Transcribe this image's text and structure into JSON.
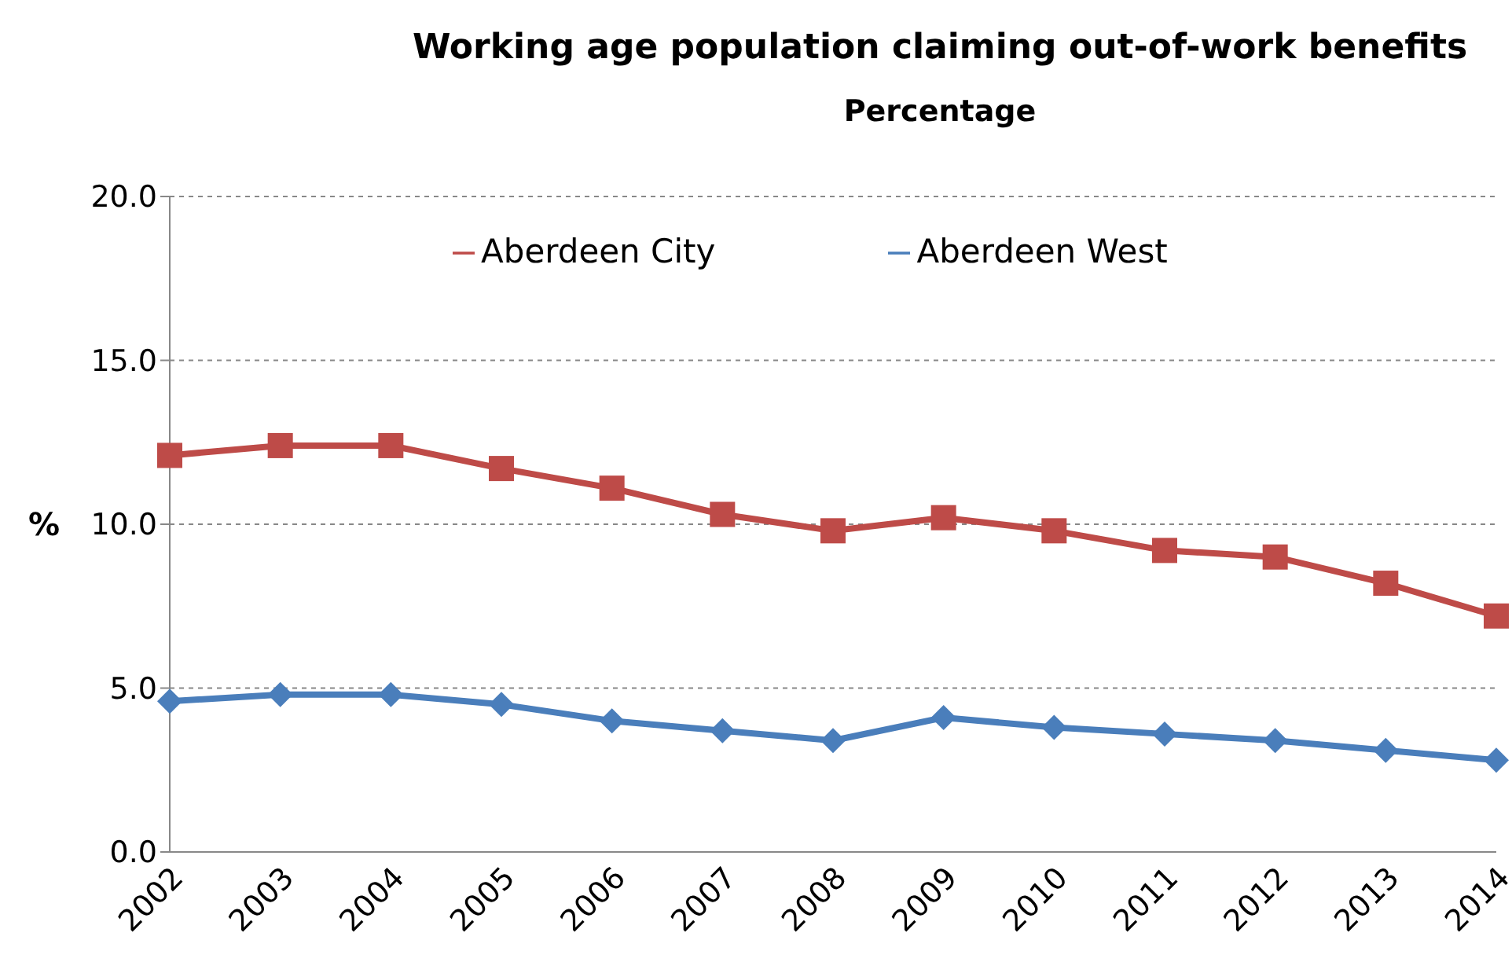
{
  "chart_data": {
    "type": "line",
    "title": "Working age population claiming out-of-work benefits",
    "subtitle": "Percentage",
    "ylabel": "%",
    "categories": [
      "2002",
      "2003",
      "2004",
      "2005",
      "2006",
      "2007",
      "2008",
      "2009",
      "2010",
      "2011",
      "2012",
      "2013",
      "2014"
    ],
    "series": [
      {
        "name": "Aberdeen West",
        "color": "#4a7ebb",
        "marker": "diamond",
        "values": [
          4.6,
          4.8,
          4.8,
          4.5,
          4.0,
          3.7,
          3.4,
          4.1,
          3.8,
          3.6,
          3.4,
          3.1,
          2.8
        ]
      },
      {
        "name": "Aberdeen City",
        "color": "#be4b48",
        "marker": "square",
        "values": [
          12.1,
          12.4,
          12.4,
          11.7,
          11.1,
          10.3,
          9.8,
          10.2,
          9.8,
          9.2,
          9.0,
          8.2,
          7.2
        ]
      }
    ],
    "ylim": [
      0,
      20
    ],
    "yticks": [
      {
        "value": 0,
        "label": "0.0"
      },
      {
        "value": 5,
        "label": "5.0"
      },
      {
        "value": 10,
        "label": "10.0"
      },
      {
        "value": 15,
        "label": "15.0"
      },
      {
        "value": 20,
        "label": "20.0"
      }
    ],
    "grid": "y",
    "legend": "top",
    "line_style": "solid"
  }
}
